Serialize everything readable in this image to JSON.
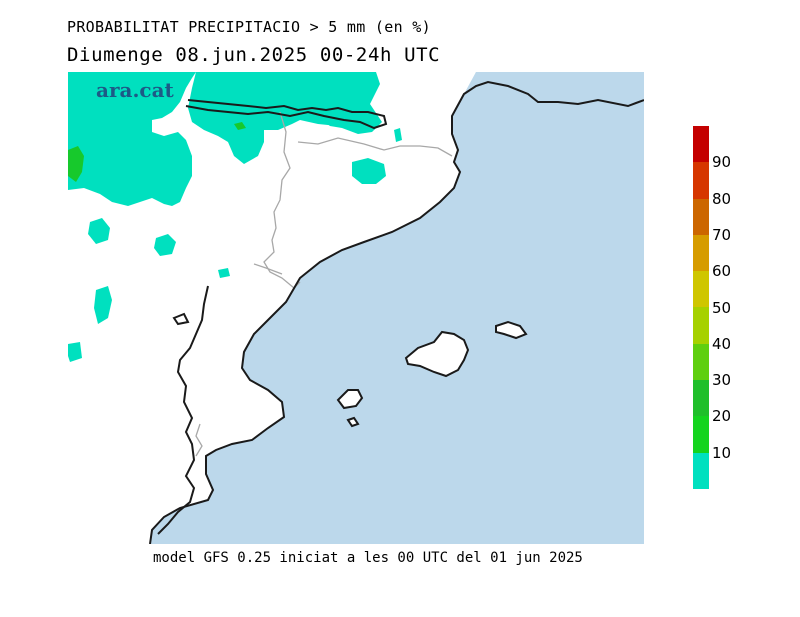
{
  "title_line1": "PROBABILITAT PRECIPITACIO > 5 mm (en %)",
  "title_line2": "Diumenge  08.jun.2025 00-24h UTC",
  "logo_text": "ara.cat",
  "footer": "model GFS 0.25 iniciat a les 00 UTC del 01 jun 2025",
  "colors": {
    "sea": "#bcd8eb",
    "land": "#ffffff",
    "coast": "#1a1a1a",
    "borders": "#a8a8a8",
    "prob_10_20": "#00e0bf",
    "prob_20_30": "#17c92c",
    "logo": "#1d5a86"
  },
  "legend": {
    "bands": [
      {
        "color": "#c40000"
      },
      {
        "color": "#d63600"
      },
      {
        "color": "#cc6600"
      },
      {
        "color": "#d69c00"
      },
      {
        "color": "#cfc600"
      },
      {
        "color": "#a6d100"
      },
      {
        "color": "#5fcf0f"
      },
      {
        "color": "#1fbf2a"
      },
      {
        "color": "#14d41e"
      },
      {
        "color": "#00e0bf"
      }
    ],
    "labels": [
      "90",
      "80",
      "70",
      "60",
      "50",
      "40",
      "30",
      "20",
      "10"
    ]
  }
}
